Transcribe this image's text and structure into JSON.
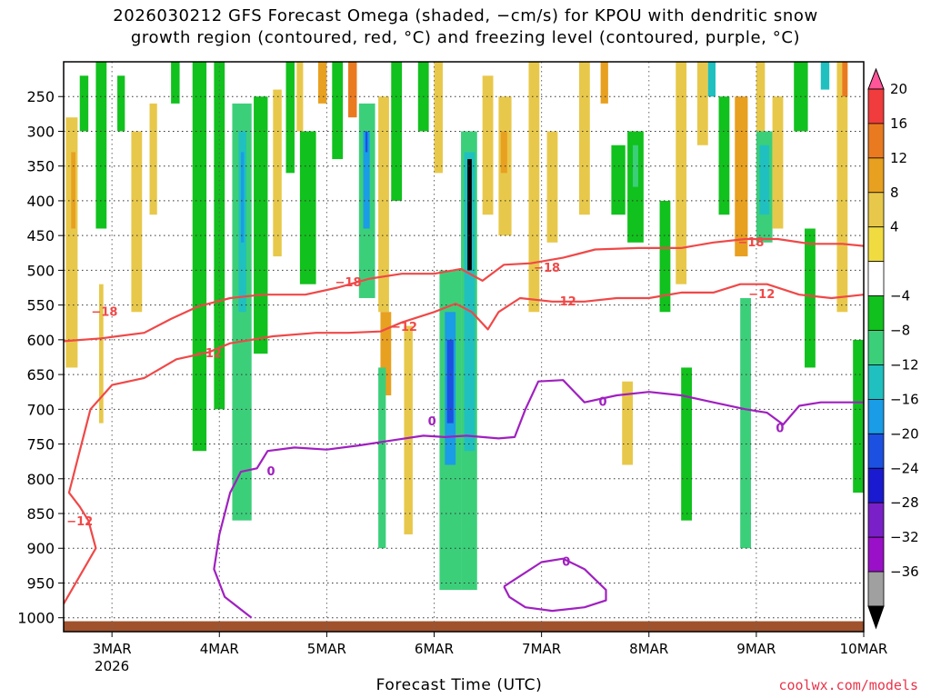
{
  "title_line1": "2026030212 GFS Forecast Omega (shaded, −cm/s) for KPOU with dendritic snow",
  "title_line2": "growth region (contoured, red, °C) and freezing level (contoured, purple, °C)",
  "credit": "coolwx.com/models",
  "chart_data": {
    "type": "heatmap",
    "title": "2026030212 GFS Forecast Omega (shaded, −cm/s) for KPOU with dendritic snow growth region (contoured, red, °C) and freezing level (contoured, purple, °C)",
    "xlabel": "Forecast Time (UTC)",
    "ylabel": "",
    "x_ticks": [
      "3MAR",
      "4MAR",
      "5MAR",
      "6MAR",
      "7MAR",
      "8MAR",
      "9MAR",
      "10MAR"
    ],
    "x_tick_year": "2026",
    "x_range_days": [
      2.55,
      10.0
    ],
    "y_ticks": [
      250,
      300,
      350,
      400,
      450,
      500,
      550,
      600,
      650,
      700,
      750,
      800,
      850,
      900,
      950,
      1000
    ],
    "y_range_hpa": [
      200,
      1020
    ],
    "grid": true,
    "colorbar": {
      "labels": [
        "20",
        "16",
        "12",
        "8",
        "4",
        "−4",
        "−8",
        "−12",
        "−16",
        "−20",
        "−24",
        "−28",
        "−32",
        "−36"
      ],
      "colors": [
        "#ff5599",
        "#f03c3c",
        "#ea7a20",
        "#e8a020",
        "#e8c84a",
        "#f0dc40",
        "#ffffff",
        "#11c11d",
        "#3ccf7a",
        "#20c0c0",
        "#1a9ce6",
        "#1c50e0",
        "#1a1ad0",
        "#7a20c8",
        "#9a10c8",
        "#a0a0a0",
        "#000000"
      ]
    },
    "contour_labels": [
      {
        "text": "−18",
        "x": 2.93,
        "p": 560
      },
      {
        "text": "−12",
        "x": 3.9,
        "p": 620
      },
      {
        "text": "−18",
        "x": 5.2,
        "p": 518
      },
      {
        "text": "−12",
        "x": 5.72,
        "p": 582
      },
      {
        "text": "−18",
        "x": 7.05,
        "p": 497
      },
      {
        "text": "−12",
        "x": 7.2,
        "p": 545
      },
      {
        "text": "−18",
        "x": 8.95,
        "p": 460
      },
      {
        "text": "−12",
        "x": 9.05,
        "p": 535
      },
      {
        "text": "−12",
        "x": 2.7,
        "p": 862
      },
      {
        "text": "0",
        "x": 4.48,
        "p": 790
      },
      {
        "text": "0",
        "x": 5.98,
        "p": 718
      },
      {
        "text": "0",
        "x": 7.57,
        "p": 690
      },
      {
        "text": "0",
        "x": 7.23,
        "p": 920
      },
      {
        "text": "0",
        "x": 9.22,
        "p": 728
      }
    ],
    "contours": [
      {
        "name": "−18",
        "color": "#f04848",
        "points": [
          [
            2.55,
            602
          ],
          [
            2.9,
            598
          ],
          [
            3.3,
            590
          ],
          [
            3.55,
            570
          ],
          [
            3.8,
            552
          ],
          [
            4.1,
            540
          ],
          [
            4.4,
            535
          ],
          [
            4.8,
            535
          ],
          [
            5.1,
            525
          ],
          [
            5.4,
            512
          ],
          [
            5.7,
            505
          ],
          [
            6.0,
            505
          ],
          [
            6.25,
            498
          ],
          [
            6.45,
            515
          ],
          [
            6.65,
            492
          ],
          [
            6.9,
            490
          ],
          [
            7.2,
            482
          ],
          [
            7.5,
            470
          ],
          [
            7.9,
            468
          ],
          [
            8.3,
            468
          ],
          [
            8.6,
            460
          ],
          [
            8.9,
            455
          ],
          [
            9.2,
            455
          ],
          [
            9.5,
            462
          ],
          [
            9.8,
            462
          ],
          [
            10.0,
            465
          ]
        ]
      },
      {
        "name": "−12",
        "color": "#f04848",
        "points": [
          [
            2.55,
            980
          ],
          [
            2.7,
            940
          ],
          [
            2.85,
            900
          ],
          [
            2.78,
            860
          ],
          [
            2.7,
            840
          ],
          [
            2.6,
            820
          ],
          [
            2.7,
            760
          ],
          [
            2.8,
            700
          ],
          [
            3.0,
            665
          ],
          [
            3.3,
            655
          ],
          [
            3.6,
            628
          ],
          [
            3.9,
            618
          ],
          [
            4.1,
            605
          ],
          [
            4.5,
            595
          ],
          [
            4.9,
            590
          ],
          [
            5.2,
            590
          ],
          [
            5.5,
            588
          ],
          [
            5.7,
            575
          ],
          [
            6.0,
            560
          ],
          [
            6.2,
            548
          ],
          [
            6.35,
            560
          ],
          [
            6.5,
            585
          ],
          [
            6.6,
            560
          ],
          [
            6.8,
            540
          ],
          [
            7.1,
            545
          ],
          [
            7.4,
            545
          ],
          [
            7.7,
            540
          ],
          [
            8.0,
            540
          ],
          [
            8.3,
            532
          ],
          [
            8.6,
            532
          ],
          [
            8.85,
            520
          ],
          [
            9.1,
            520
          ],
          [
            9.4,
            535
          ],
          [
            9.7,
            540
          ],
          [
            10.0,
            535
          ]
        ]
      },
      {
        "name": "0",
        "color": "#a020c0",
        "points": [
          [
            4.3,
            1000
          ],
          [
            4.05,
            970
          ],
          [
            3.95,
            930
          ],
          [
            4.0,
            880
          ],
          [
            4.1,
            820
          ],
          [
            4.2,
            790
          ],
          [
            4.35,
            785
          ],
          [
            4.45,
            760
          ],
          [
            4.7,
            755
          ],
          [
            5.0,
            758
          ],
          [
            5.3,
            752
          ],
          [
            5.6,
            745
          ],
          [
            5.9,
            738
          ],
          [
            6.1,
            740
          ],
          [
            6.3,
            738
          ],
          [
            6.6,
            742
          ],
          [
            6.75,
            740
          ],
          [
            6.85,
            700
          ],
          [
            6.97,
            660
          ],
          [
            7.2,
            658
          ],
          [
            7.4,
            690
          ],
          [
            7.7,
            680
          ],
          [
            8.0,
            675
          ],
          [
            8.3,
            680
          ],
          [
            8.6,
            690
          ],
          [
            8.9,
            700
          ],
          [
            9.1,
            705
          ],
          [
            9.25,
            722
          ],
          [
            9.4,
            695
          ],
          [
            9.6,
            690
          ],
          [
            9.8,
            690
          ],
          [
            10.0,
            690
          ]
        ]
      },
      {
        "name": "0",
        "color": "#a020c0",
        "points": [
          [
            6.65,
            955
          ],
          [
            6.8,
            940
          ],
          [
            7.0,
            920
          ],
          [
            7.2,
            915
          ],
          [
            7.4,
            930
          ],
          [
            7.6,
            960
          ],
          [
            7.6,
            975
          ],
          [
            7.4,
            985
          ],
          [
            7.1,
            990
          ],
          [
            6.85,
            985
          ],
          [
            6.7,
            970
          ],
          [
            6.65,
            955
          ]
        ]
      }
    ],
    "shading_cells": [
      {
        "x0": 2.57,
        "x1": 2.68,
        "p0": 280,
        "p1": 640,
        "level": "4",
        "color": "#e8c84a"
      },
      {
        "x0": 2.62,
        "x1": 2.66,
        "p0": 330,
        "p1": 440,
        "level": "8",
        "color": "#e8a020"
      },
      {
        "x0": 2.7,
        "x1": 2.78,
        "p0": 220,
        "p1": 300,
        "level": "-4",
        "color": "#11c11d"
      },
      {
        "x0": 2.85,
        "x1": 2.95,
        "p0": 200,
        "p1": 440,
        "level": "-4",
        "color": "#11c11d"
      },
      {
        "x0": 2.88,
        "x1": 2.92,
        "p0": 520,
        "p1": 720,
        "level": "4",
        "color": "#e8c84a"
      },
      {
        "x0": 3.05,
        "x1": 3.12,
        "p0": 220,
        "p1": 300,
        "level": "-4",
        "color": "#11c11d"
      },
      {
        "x0": 3.18,
        "x1": 3.28,
        "p0": 300,
        "p1": 560,
        "level": "4",
        "color": "#e8c84a"
      },
      {
        "x0": 3.35,
        "x1": 3.42,
        "p0": 260,
        "p1": 420,
        "level": "4",
        "color": "#e8c84a"
      },
      {
        "x0": 3.55,
        "x1": 3.63,
        "p0": 200,
        "p1": 260,
        "level": "-4",
        "color": "#11c11d"
      },
      {
        "x0": 3.75,
        "x1": 3.88,
        "p0": 200,
        "p1": 760,
        "level": "-4",
        "color": "#11c11d"
      },
      {
        "x0": 3.95,
        "x1": 4.05,
        "p0": 200,
        "p1": 700,
        "level": "-4",
        "color": "#11c11d"
      },
      {
        "x0": 4.12,
        "x1": 4.3,
        "p0": 260,
        "p1": 860,
        "level": "-8",
        "color": "#3ccf7a"
      },
      {
        "x0": 4.18,
        "x1": 4.25,
        "p0": 300,
        "p1": 560,
        "level": "-12",
        "color": "#20c0c0"
      },
      {
        "x0": 4.2,
        "x1": 4.23,
        "p0": 330,
        "p1": 460,
        "level": "-16",
        "color": "#1a9ce6"
      },
      {
        "x0": 4.32,
        "x1": 4.45,
        "p0": 250,
        "p1": 620,
        "level": "-4",
        "color": "#11c11d"
      },
      {
        "x0": 4.5,
        "x1": 4.58,
        "p0": 240,
        "p1": 480,
        "level": "4",
        "color": "#e8c84a"
      },
      {
        "x0": 4.62,
        "x1": 4.7,
        "p0": 200,
        "p1": 360,
        "level": "-4",
        "color": "#11c11d"
      },
      {
        "x0": 4.72,
        "x1": 4.78,
        "p0": 200,
        "p1": 300,
        "level": "4",
        "color": "#e8c84a"
      },
      {
        "x0": 4.75,
        "x1": 4.9,
        "p0": 300,
        "p1": 520,
        "level": "-4",
        "color": "#11c11d"
      },
      {
        "x0": 4.92,
        "x1": 5.0,
        "p0": 200,
        "p1": 260,
        "level": "8",
        "color": "#e8a020"
      },
      {
        "x0": 5.05,
        "x1": 5.15,
        "p0": 200,
        "p1": 340,
        "level": "-4",
        "color": "#11c11d"
      },
      {
        "x0": 5.2,
        "x1": 5.28,
        "p0": 200,
        "p1": 280,
        "level": "12",
        "color": "#ea7a20"
      },
      {
        "x0": 5.3,
        "x1": 5.45,
        "p0": 260,
        "p1": 540,
        "level": "-8",
        "color": "#3ccf7a"
      },
      {
        "x0": 5.34,
        "x1": 5.4,
        "p0": 300,
        "p1": 440,
        "level": "-16",
        "color": "#1a9ce6"
      },
      {
        "x0": 5.36,
        "x1": 5.38,
        "p0": 300,
        "p1": 330,
        "level": "-20",
        "color": "#1c50e0"
      },
      {
        "x0": 5.48,
        "x1": 5.58,
        "p0": 250,
        "p1": 560,
        "level": "4",
        "color": "#e8c84a"
      },
      {
        "x0": 5.5,
        "x1": 5.6,
        "p0": 560,
        "p1": 680,
        "level": "8",
        "color": "#e8a020"
      },
      {
        "x0": 5.48,
        "x1": 5.55,
        "p0": 640,
        "p1": 900,
        "level": "-8",
        "color": "#3ccf7a"
      },
      {
        "x0": 5.6,
        "x1": 5.7,
        "p0": 200,
        "p1": 400,
        "level": "-4",
        "color": "#11c11d"
      },
      {
        "x0": 5.72,
        "x1": 5.8,
        "p0": 580,
        "p1": 880,
        "level": "4",
        "color": "#e8c84a"
      },
      {
        "x0": 5.85,
        "x1": 5.95,
        "p0": 200,
        "p1": 300,
        "level": "-4",
        "color": "#11c11d"
      },
      {
        "x0": 6.0,
        "x1": 6.08,
        "p0": 200,
        "p1": 360,
        "level": "4",
        "color": "#e8c84a"
      },
      {
        "x0": 6.05,
        "x1": 6.25,
        "p0": 500,
        "p1": 960,
        "level": "-8",
        "color": "#3ccf7a"
      },
      {
        "x0": 6.1,
        "x1": 6.2,
        "p0": 560,
        "p1": 780,
        "level": "-16",
        "color": "#1a9ce6"
      },
      {
        "x0": 6.12,
        "x1": 6.18,
        "p0": 600,
        "p1": 720,
        "level": "-20",
        "color": "#1c50e0"
      },
      {
        "x0": 6.25,
        "x1": 6.4,
        "p0": 300,
        "p1": 960,
        "level": "-8",
        "color": "#3ccf7a"
      },
      {
        "x0": 6.28,
        "x1": 6.38,
        "p0": 330,
        "p1": 760,
        "level": "-12",
        "color": "#20c0c0"
      },
      {
        "x0": 6.31,
        "x1": 6.35,
        "p0": 340,
        "p1": 500,
        "level": "-36",
        "color": "#000000"
      },
      {
        "x0": 6.45,
        "x1": 6.55,
        "p0": 220,
        "p1": 420,
        "level": "4",
        "color": "#e8c84a"
      },
      {
        "x0": 6.6,
        "x1": 6.72,
        "p0": 250,
        "p1": 450,
        "level": "4",
        "color": "#e8c84a"
      },
      {
        "x0": 6.62,
        "x1": 6.68,
        "p0": 300,
        "p1": 360,
        "level": "8",
        "color": "#e8a020"
      },
      {
        "x0": 6.88,
        "x1": 6.98,
        "p0": 200,
        "p1": 560,
        "level": "4",
        "color": "#e8c84a"
      },
      {
        "x0": 7.05,
        "x1": 7.15,
        "p0": 300,
        "p1": 460,
        "level": "4",
        "color": "#e8c84a"
      },
      {
        "x0": 7.35,
        "x1": 7.45,
        "p0": 200,
        "p1": 420,
        "level": "4",
        "color": "#e8c84a"
      },
      {
        "x0": 7.55,
        "x1": 7.62,
        "p0": 200,
        "p1": 260,
        "level": "8",
        "color": "#e8a020"
      },
      {
        "x0": 7.65,
        "x1": 7.78,
        "p0": 320,
        "p1": 420,
        "level": "-4",
        "color": "#11c11d"
      },
      {
        "x0": 7.8,
        "x1": 7.95,
        "p0": 300,
        "p1": 460,
        "level": "-4",
        "color": "#11c11d"
      },
      {
        "x0": 7.85,
        "x1": 7.9,
        "p0": 320,
        "p1": 380,
        "level": "-8",
        "color": "#3ccf7a"
      },
      {
        "x0": 7.75,
        "x1": 7.85,
        "p0": 660,
        "p1": 780,
        "level": "4",
        "color": "#e8c84a"
      },
      {
        "x0": 8.1,
        "x1": 8.2,
        "p0": 400,
        "p1": 560,
        "level": "-4",
        "color": "#11c11d"
      },
      {
        "x0": 8.25,
        "x1": 8.35,
        "p0": 200,
        "p1": 520,
        "level": "4",
        "color": "#e8c84a"
      },
      {
        "x0": 8.3,
        "x1": 8.4,
        "p0": 640,
        "p1": 860,
        "level": "-4",
        "color": "#11c11d"
      },
      {
        "x0": 8.45,
        "x1": 8.55,
        "p0": 200,
        "p1": 320,
        "level": "4",
        "color": "#e8c84a"
      },
      {
        "x0": 8.55,
        "x1": 8.62,
        "p0": 200,
        "p1": 250,
        "level": "-12",
        "color": "#20c0c0"
      },
      {
        "x0": 8.65,
        "x1": 8.75,
        "p0": 250,
        "p1": 420,
        "level": "-4",
        "color": "#11c11d"
      },
      {
        "x0": 8.8,
        "x1": 8.92,
        "p0": 250,
        "p1": 480,
        "level": "8",
        "color": "#e8a020"
      },
      {
        "x0": 8.85,
        "x1": 8.95,
        "p0": 540,
        "p1": 900,
        "level": "-8",
        "color": "#3ccf7a"
      },
      {
        "x0": 9.0,
        "x1": 9.08,
        "p0": 200,
        "p1": 300,
        "level": "4",
        "color": "#e8c84a"
      },
      {
        "x0": 9.0,
        "x1": 9.15,
        "p0": 300,
        "p1": 460,
        "level": "-8",
        "color": "#3ccf7a"
      },
      {
        "x0": 9.03,
        "x1": 9.12,
        "p0": 320,
        "p1": 420,
        "level": "-12",
        "color": "#20c0c0"
      },
      {
        "x0": 9.15,
        "x1": 9.25,
        "p0": 250,
        "p1": 440,
        "level": "4",
        "color": "#e8c84a"
      },
      {
        "x0": 9.35,
        "x1": 9.48,
        "p0": 200,
        "p1": 300,
        "level": "-4",
        "color": "#11c11d"
      },
      {
        "x0": 9.45,
        "x1": 9.55,
        "p0": 440,
        "p1": 640,
        "level": "-4",
        "color": "#11c11d"
      },
      {
        "x0": 9.6,
        "x1": 9.68,
        "p0": 200,
        "p1": 240,
        "level": "-12",
        "color": "#20c0c0"
      },
      {
        "x0": 9.75,
        "x1": 9.85,
        "p0": 200,
        "p1": 560,
        "level": "4",
        "color": "#e8c84a"
      },
      {
        "x0": 9.8,
        "x1": 9.85,
        "p0": 200,
        "p1": 250,
        "level": "12",
        "color": "#ea7a20"
      },
      {
        "x0": 9.9,
        "x1": 10.0,
        "p0": 600,
        "p1": 820,
        "level": "-4",
        "color": "#11c11d"
      }
    ],
    "ground": {
      "color": "#a0522d",
      "p_top": 1005
    }
  }
}
